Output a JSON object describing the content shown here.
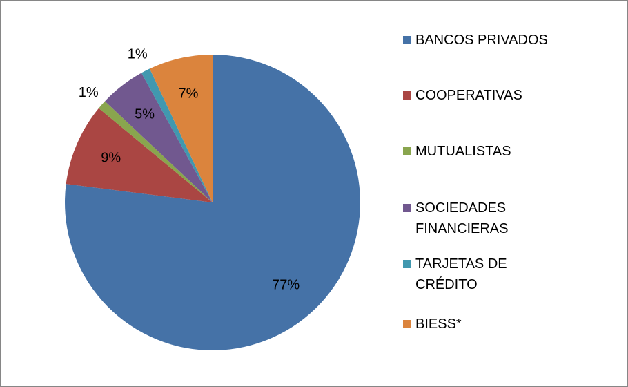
{
  "chart_data": {
    "type": "pie",
    "categories": [
      "BANCOS PRIVADOS",
      "COOPERATIVAS",
      "MUTUALISTAS",
      "SOCIEDADES FINANCIERAS",
      "TARJETAS DE CRÉDITO",
      "BIESS*"
    ],
    "values": [
      77,
      9,
      1,
      5,
      1,
      7
    ],
    "value_labels": [
      "77%",
      "9%",
      "1%",
      "5%",
      "1%",
      "7%"
    ],
    "colors": [
      "#4572a7",
      "#aa4643",
      "#89a54e",
      "#71588f",
      "#4198af",
      "#db843d"
    ],
    "legend": "right"
  }
}
